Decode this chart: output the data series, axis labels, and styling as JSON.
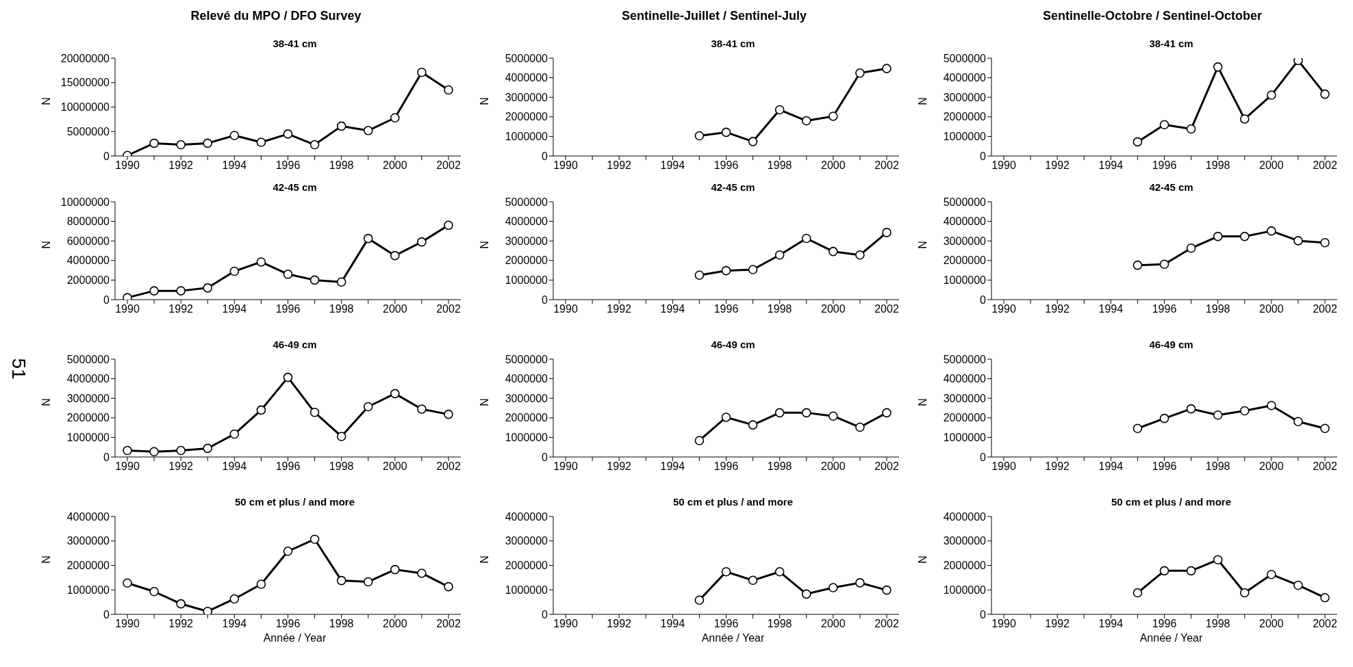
{
  "chart_data": [
    {
      "type": "line",
      "title": "Relevé du MPO / DFO Survey",
      "subtitle": "38-41 cm",
      "ylabel": "N",
      "categories": [
        "1990",
        null,
        "1992",
        null,
        "1994",
        null,
        "1996",
        null,
        "1998",
        null,
        "2000",
        null,
        "2002"
      ],
      "values": [
        100000,
        2600000,
        2300000,
        2600000,
        4200000,
        2800000,
        4500000,
        2300000,
        6100000,
        5200000,
        7800000,
        17100000,
        13500000
      ],
      "color": "#000000",
      "marker": "circle",
      "ylim": [
        0,
        20000000
      ],
      "yticks": [
        0,
        5000000,
        10000000,
        15000000,
        20000000
      ]
    },
    {
      "type": "line",
      "title": "Sentinelle-Juillet / Sentinel-July",
      "subtitle": "38-41 cm",
      "ylabel": "N",
      "categories": [
        "1990",
        null,
        "1992",
        null,
        "1994",
        null,
        "1996",
        null,
        "1998",
        null,
        "2000",
        null,
        "2002"
      ],
      "values": [
        null,
        null,
        null,
        null,
        null,
        1030000,
        1210000,
        740000,
        2360000,
        1800000,
        2030000,
        4240000,
        4470000
      ],
      "color": "#000000",
      "marker": "circle",
      "ylim": [
        0,
        5000000
      ],
      "yticks": [
        0,
        1000000,
        2000000,
        3000000,
        4000000,
        5000000
      ]
    },
    {
      "type": "line",
      "title": "Sentinelle-Octobre / Sentinel-October",
      "subtitle": "38-41 cm",
      "ylabel": "N",
      "categories": [
        "1990",
        null,
        "1992",
        null,
        "1994",
        null,
        "1996",
        null,
        "1998",
        null,
        "2000",
        null,
        "2002"
      ],
      "values": [
        null,
        null,
        null,
        null,
        null,
        720000,
        1600000,
        1380000,
        4550000,
        1890000,
        3110000,
        4880000,
        3160000
      ],
      "color": "#000000",
      "marker": "circle",
      "ylim": [
        0,
        5000000
      ],
      "yticks": [
        0,
        1000000,
        2000000,
        3000000,
        4000000,
        5000000
      ]
    },
    {
      "type": "line",
      "subtitle": "42-45 cm",
      "ylabel": "N",
      "categories": [
        "1990",
        null,
        "1992",
        null,
        "1994",
        null,
        "1996",
        null,
        "1998",
        null,
        "2000",
        null,
        "2002"
      ],
      "values": [
        200000,
        900000,
        900000,
        1200000,
        2900000,
        3850000,
        2600000,
        2000000,
        1800000,
        6250000,
        4500000,
        5900000,
        7600000
      ],
      "color": "#000000",
      "marker": "circle",
      "ylim": [
        0,
        10000000
      ],
      "yticks": [
        0,
        2000000,
        4000000,
        6000000,
        8000000,
        10000000
      ]
    },
    {
      "type": "line",
      "subtitle": "42-45 cm",
      "ylabel": "N",
      "categories": [
        "1990",
        null,
        "1992",
        null,
        "1994",
        null,
        "1996",
        null,
        "1998",
        null,
        "2000",
        null,
        "2002"
      ],
      "values": [
        null,
        null,
        null,
        null,
        null,
        1250000,
        1480000,
        1540000,
        2280000,
        3130000,
        2460000,
        2280000,
        3430000
      ],
      "color": "#000000",
      "marker": "circle",
      "ylim": [
        0,
        5000000
      ],
      "yticks": [
        0,
        1000000,
        2000000,
        3000000,
        4000000,
        5000000
      ]
    },
    {
      "type": "line",
      "subtitle": "42-45 cm",
      "ylabel": "N",
      "categories": [
        "1990",
        null,
        "1992",
        null,
        "1994",
        null,
        "1996",
        null,
        "1998",
        null,
        "2000",
        null,
        "2002"
      ],
      "values": [
        null,
        null,
        null,
        null,
        null,
        1760000,
        1810000,
        2630000,
        3230000,
        3230000,
        3510000,
        3010000,
        2910000
      ],
      "color": "#000000",
      "marker": "circle",
      "ylim": [
        0,
        5000000
      ],
      "yticks": [
        0,
        1000000,
        2000000,
        3000000,
        4000000,
        5000000
      ]
    },
    {
      "type": "line",
      "subtitle": "46-49 cm",
      "ylabel": "N",
      "annotations": [
        "51"
      ],
      "categories": [
        "1990",
        null,
        "1992",
        null,
        "1994",
        null,
        "1996",
        null,
        "1998",
        null,
        "2000",
        null,
        "2002"
      ],
      "values": [
        330000,
        270000,
        330000,
        440000,
        1170000,
        2400000,
        4070000,
        2280000,
        1050000,
        2570000,
        3240000,
        2450000,
        2180000
      ],
      "color": "#000000",
      "marker": "circle",
      "ylim": [
        0,
        5000000
      ],
      "yticks": [
        0,
        1000000,
        2000000,
        3000000,
        4000000,
        5000000
      ]
    },
    {
      "type": "line",
      "subtitle": "46-49 cm",
      "ylabel": "N",
      "categories": [
        "1990",
        null,
        "1992",
        null,
        "1994",
        null,
        "1996",
        null,
        "1998",
        null,
        "2000",
        null,
        "2002"
      ],
      "values": [
        null,
        null,
        null,
        null,
        null,
        840000,
        2030000,
        1640000,
        2260000,
        2260000,
        2090000,
        1520000,
        2260000
      ],
      "color": "#000000",
      "marker": "circle",
      "ylim": [
        0,
        5000000
      ],
      "yticks": [
        0,
        1000000,
        2000000,
        3000000,
        4000000,
        5000000
      ]
    },
    {
      "type": "line",
      "subtitle": "46-49 cm",
      "ylabel": "N",
      "categories": [
        "1990",
        null,
        "1992",
        null,
        "1994",
        null,
        "1996",
        null,
        "1998",
        null,
        "2000",
        null,
        "2002"
      ],
      "values": [
        null,
        null,
        null,
        null,
        null,
        1460000,
        1970000,
        2460000,
        2140000,
        2360000,
        2630000,
        1810000,
        1460000
      ],
      "color": "#000000",
      "marker": "circle",
      "ylim": [
        0,
        5000000
      ],
      "yticks": [
        0,
        1000000,
        2000000,
        3000000,
        4000000,
        5000000
      ]
    },
    {
      "type": "line",
      "subtitle": "50 cm et plus / and more",
      "xlabel": "Année / Year",
      "ylabel": "N",
      "categories": [
        "1990",
        null,
        "1992",
        null,
        "1994",
        null,
        "1996",
        null,
        "1998",
        null,
        "2000",
        null,
        "2002"
      ],
      "values": [
        1280000,
        930000,
        430000,
        120000,
        630000,
        1230000,
        2580000,
        3070000,
        1380000,
        1330000,
        1830000,
        1680000,
        1130000
      ],
      "color": "#000000",
      "marker": "circle",
      "ylim": [
        0,
        4000000
      ],
      "yticks": [
        0,
        1000000,
        2000000,
        3000000,
        4000000
      ]
    },
    {
      "type": "line",
      "subtitle": "50 cm et plus / and more",
      "xlabel": "Année / Year",
      "ylabel": "N",
      "categories": [
        "1990",
        null,
        "1992",
        null,
        "1994",
        null,
        "1996",
        null,
        "1998",
        null,
        "2000",
        null,
        "2002"
      ],
      "values": [
        null,
        null,
        null,
        null,
        null,
        580000,
        1740000,
        1390000,
        1740000,
        830000,
        1090000,
        1290000,
        990000
      ],
      "color": "#000000",
      "marker": "circle",
      "ylim": [
        0,
        4000000
      ],
      "yticks": [
        0,
        1000000,
        2000000,
        3000000,
        4000000
      ]
    },
    {
      "type": "line",
      "subtitle": "50 cm et plus / and more",
      "xlabel": "Année / Year",
      "ylabel": "N",
      "categories": [
        "1990",
        null,
        "1992",
        null,
        "1994",
        null,
        "1996",
        null,
        "1998",
        null,
        "2000",
        null,
        "2002"
      ],
      "values": [
        null,
        null,
        null,
        null,
        null,
        880000,
        1780000,
        1780000,
        2230000,
        880000,
        1630000,
        1190000,
        680000
      ],
      "color": "#000000",
      "marker": "circle",
      "ylim": [
        0,
        4000000
      ],
      "yticks": [
        0,
        1000000,
        2000000,
        3000000,
        4000000
      ]
    }
  ]
}
